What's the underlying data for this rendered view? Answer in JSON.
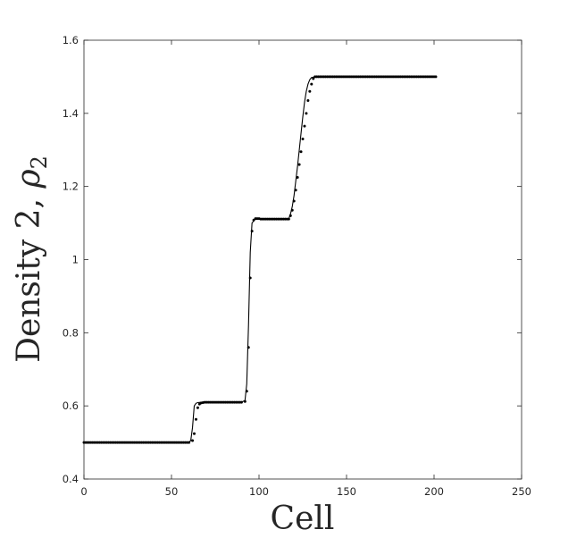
{
  "chart_data": {
    "type": "line",
    "xlabel": "Cell",
    "ylabel": "Density 2, ",
    "ylabel_symbol": "ρ",
    "ylabel_subscript": "2",
    "xlim": [
      0,
      250
    ],
    "ylim": [
      0.4,
      1.6
    ],
    "x_ticks": [
      0,
      50,
      100,
      150,
      200,
      250
    ],
    "x_tick_labels": [
      "0",
      "50",
      "100",
      "150",
      "200",
      "250"
    ],
    "y_ticks": [
      0.4,
      0.6,
      0.8,
      1.0,
      1.2,
      1.4,
      1.6
    ],
    "y_tick_labels": [
      "0.4",
      "0.6",
      "0.8",
      "1",
      "1.2",
      "1.4",
      "1.6"
    ],
    "grid": false,
    "legend": "none",
    "series": [
      {
        "style": "line",
        "color": "#000000",
        "x": [
          0,
          58,
          60,
          61,
          62,
          63,
          64,
          65,
          67,
          70,
          80,
          90,
          92,
          93,
          94,
          95,
          96,
          98,
          100,
          110,
          115,
          117,
          118,
          119,
          120,
          121,
          122,
          123,
          124,
          125,
          126,
          127,
          128,
          129,
          130,
          132,
          140,
          160,
          180,
          201
        ],
        "y": [
          0.5,
          0.5,
          0.501,
          0.505,
          0.54,
          0.6,
          0.607,
          0.609,
          0.61,
          0.61,
          0.61,
          0.61,
          0.615,
          0.66,
          0.82,
          1.02,
          1.1,
          1.112,
          1.112,
          1.111,
          1.11,
          1.112,
          1.125,
          1.145,
          1.175,
          1.215,
          1.255,
          1.3,
          1.345,
          1.39,
          1.43,
          1.46,
          1.48,
          1.492,
          1.498,
          1.5,
          1.5,
          1.5,
          1.5,
          1.5
        ]
      },
      {
        "style": "markers",
        "color": "#000000",
        "x": [
          62,
          63,
          64,
          65,
          66,
          67,
          68,
          69,
          70,
          92,
          93,
          94,
          95,
          96,
          97,
          98,
          99,
          100,
          117,
          118,
          119,
          120,
          121,
          122,
          123,
          124,
          125,
          126,
          127,
          128,
          129,
          130,
          131
        ],
        "y": [
          0.505,
          0.524,
          0.563,
          0.595,
          0.605,
          0.608,
          0.609,
          0.61,
          0.61,
          0.612,
          0.64,
          0.76,
          0.95,
          1.078,
          1.108,
          1.112,
          1.112,
          1.112,
          1.111,
          1.12,
          1.135,
          1.16,
          1.19,
          1.225,
          1.26,
          1.295,
          1.33,
          1.365,
          1.4,
          1.435,
          1.46,
          1.48,
          1.495
        ],
        "dense_ranges": [
          {
            "from": 0,
            "to": 60,
            "step": 1,
            "value": 0.5
          },
          {
            "from": 71,
            "to": 90,
            "step": 1,
            "value": 0.61
          },
          {
            "from": 101,
            "to": 116,
            "step": 1,
            "value": 1.111
          },
          {
            "from": 132,
            "to": 201,
            "step": 1,
            "value": 1.5
          }
        ]
      }
    ]
  }
}
